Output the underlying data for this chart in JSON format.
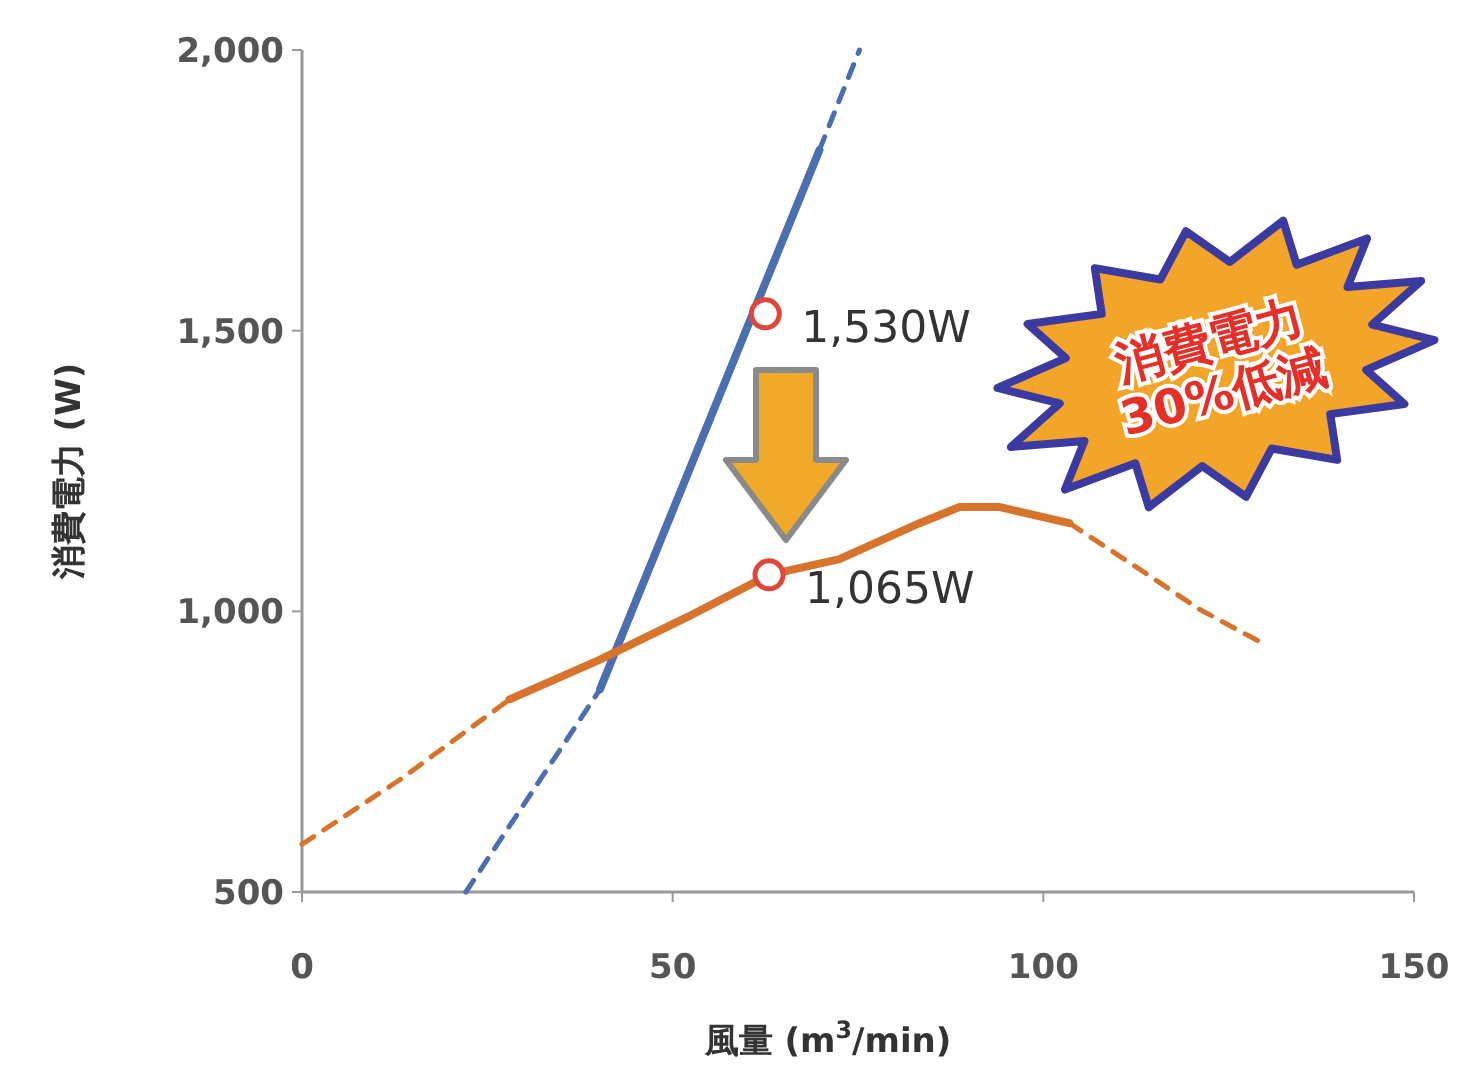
{
  "chart_data": {
    "type": "line",
    "xlabel": "風量 (m$^{3}$/min)",
    "ylabel": "消費電力 (W)",
    "xlim": [
      0,
      150
    ],
    "ylim": [
      500,
      2000
    ],
    "xticks": [
      0,
      50,
      100,
      150
    ],
    "yticks": [
      {
        "value": 500,
        "label": "500"
      },
      {
        "value": 1000,
        "label": "1,000"
      },
      {
        "value": 1500,
        "label": "1,500"
      },
      {
        "value": 2000,
        "label": "2,000"
      }
    ],
    "series": [
      {
        "color": "#4a6eb0",
        "line_style": "dashed",
        "x": [
          22.1,
          40.2
        ],
        "values": [
          500,
          861
        ]
      },
      {
        "color": "#4a6eb0",
        "line_style": "solid",
        "x": [
          40.2,
          69.8
        ],
        "values": [
          861,
          1822
        ]
      },
      {
        "color": "#4a6eb0",
        "line_style": "dashed",
        "x": [
          69.8,
          75.2
        ],
        "values": [
          1822,
          2000
        ]
      },
      {
        "color": "#d8732c",
        "line_style": "dashed",
        "x": [
          0,
          13.2,
          28
        ],
        "values": [
          585,
          700,
          843
        ]
      },
      {
        "color": "#d8732c",
        "line_style": "solid",
        "x": [
          28,
          40.2,
          52,
          63,
          72.5,
          83.3,
          88.7,
          94,
          103.5
        ],
        "values": [
          843,
          914,
          990,
          1065,
          1093,
          1157,
          1186,
          1186,
          1157
        ]
      },
      {
        "color": "#d8732c",
        "line_style": "dashed",
        "x": [
          103.5,
          113,
          121,
          129.6
        ],
        "values": [
          1157,
          1075,
          1004,
          943
        ]
      },
      {
        "type": "scatter",
        "color": "#e0463a",
        "marker": "circle",
        "x": [
          62.5
        ],
        "values": [
          1530
        ],
        "value_labels": [
          "1,530W"
        ]
      },
      {
        "type": "scatter",
        "color": "#e0463a",
        "marker": "circle",
        "x": [
          63
        ],
        "values": [
          1065
        ],
        "value_labels": [
          "1,065W"
        ]
      }
    ],
    "annotations": [
      "消費電力\n30%低減"
    ]
  }
}
